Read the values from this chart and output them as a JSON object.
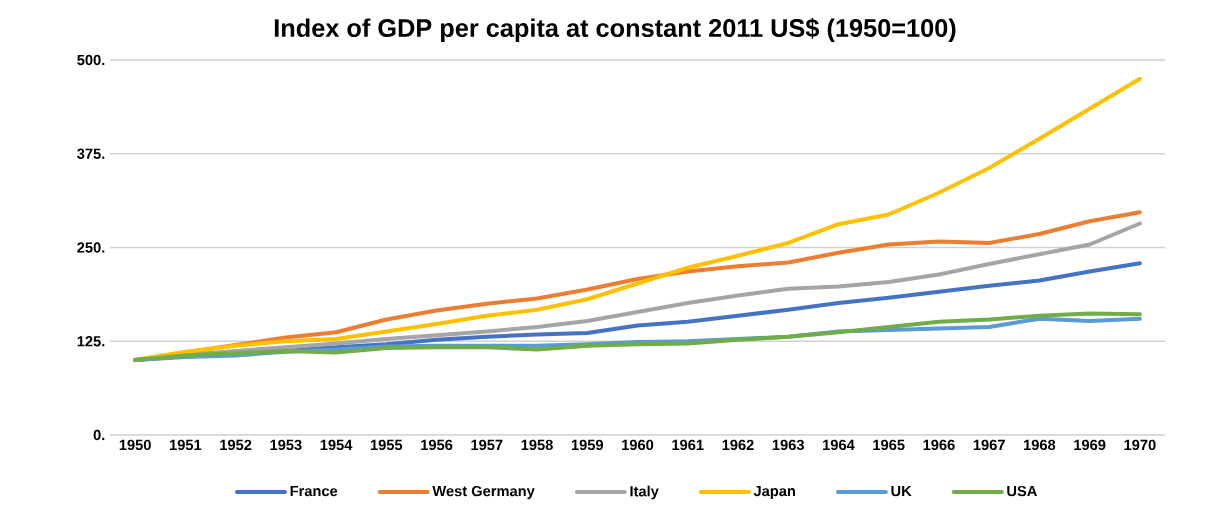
{
  "chart_data": {
    "type": "line",
    "title": "Index of GDP per capita at constant 2011 US$ (1950=100)",
    "categories": [
      "1950",
      "1951",
      "1952",
      "1953",
      "1954",
      "1955",
      "1956",
      "1957",
      "1958",
      "1959",
      "1960",
      "1961",
      "1962",
      "1963",
      "1964",
      "1965",
      "1966",
      "1967",
      "1968",
      "1969",
      "1970"
    ],
    "series": [
      {
        "name": "France",
        "color": "#4472c4",
        "values": [
          100,
          105,
          108,
          112,
          117,
          121,
          127,
          131,
          134,
          136,
          146,
          151,
          159,
          167,
          176,
          183,
          191,
          199,
          206,
          218,
          229
        ]
      },
      {
        "name": "West Germany",
        "color": "#ed7d31",
        "values": [
          100,
          110,
          120,
          130,
          137,
          154,
          166,
          175,
          182,
          194,
          208,
          218,
          225,
          230,
          243,
          254,
          258,
          256,
          268,
          285,
          297
        ]
      },
      {
        "name": "Italy",
        "color": "#a5a5a5",
        "values": [
          100,
          107,
          112,
          117,
          122,
          128,
          133,
          138,
          144,
          152,
          164,
          176,
          186,
          195,
          198,
          204,
          214,
          228,
          241,
          254,
          282
        ]
      },
      {
        "name": "Japan",
        "color": "#ffc000",
        "values": [
          100,
          111,
          119,
          125,
          128,
          138,
          148,
          159,
          167,
          181,
          202,
          223,
          239,
          256,
          281,
          294,
          323,
          356,
          395,
          435,
          475
        ]
      },
      {
        "name": "UK",
        "color": "#5b9bd5",
        "values": [
          100,
          104,
          106,
          111,
          114,
          118,
          119,
          119,
          119,
          121,
          124,
          125,
          128,
          131,
          138,
          140,
          142,
          144,
          155,
          152,
          155
        ]
      },
      {
        "name": "USA",
        "color": "#70ad47",
        "values": [
          100,
          106,
          109,
          112,
          110,
          116,
          117,
          117,
          114,
          119,
          121,
          122,
          127,
          131,
          137,
          144,
          151,
          154,
          159,
          162,
          161
        ]
      }
    ],
    "ylim": [
      0,
      500
    ],
    "yticks": [
      {
        "value": 0,
        "label": "0."
      },
      {
        "value": 125,
        "label": "125."
      },
      {
        "value": 250,
        "label": "250."
      },
      {
        "value": 375,
        "label": "375."
      },
      {
        "value": 500,
        "label": "500."
      }
    ],
    "grid": "y",
    "legend": "bottom",
    "marker": "none",
    "line_style": "solid"
  }
}
